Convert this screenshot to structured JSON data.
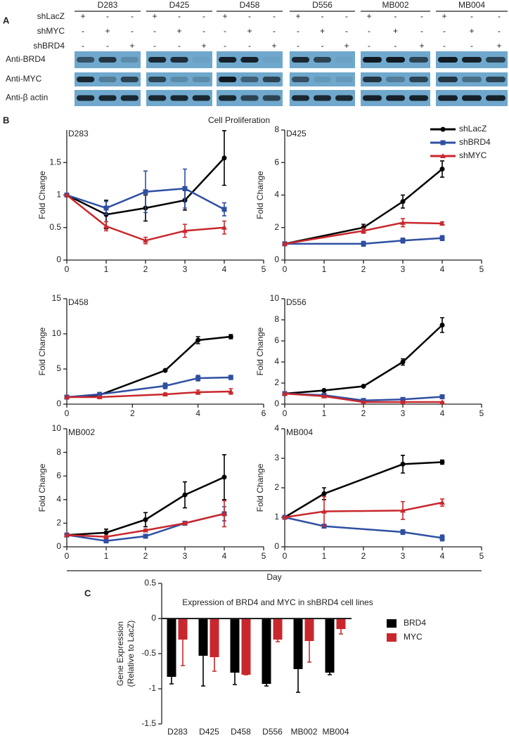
{
  "panel_labels": [
    "A",
    "B",
    "C"
  ],
  "blot": {
    "cell_lines": [
      "D283",
      "D425",
      "D458",
      "D556",
      "MB002",
      "MB004"
    ],
    "conditions": [
      {
        "name": "shLacZ",
        "marks": [
          "+",
          "-",
          "-"
        ]
      },
      {
        "name": "shMYC",
        "marks": [
          "-",
          "+",
          "-"
        ]
      },
      {
        "name": "shBRD4",
        "marks": [
          "-",
          "-",
          "+"
        ]
      }
    ],
    "antibodies": [
      "Anti-BRD4",
      "Anti-MYC",
      "Anti-β actin"
    ]
  },
  "panel_b": {
    "title": "Cell Proliferation",
    "xlabel": "Day",
    "legend": [
      {
        "name": "shLacZ",
        "color": "#000000"
      },
      {
        "name": "shBRD4",
        "color": "#2f4fa2"
      },
      {
        "name": "shMYC",
        "color": "#c8282d"
      }
    ]
  },
  "chart_data": [
    {
      "type": "line",
      "title": "D283",
      "ylabel": "Fold Change",
      "x": [
        0,
        1,
        2,
        3,
        4
      ],
      "xlim": [
        0,
        5
      ],
      "xticks": [
        0,
        1,
        2,
        3,
        4,
        5
      ],
      "ylim": [
        0,
        2
      ],
      "yticks": [
        0,
        0.5,
        1,
        1.5
      ],
      "series": [
        {
          "values": [
            1,
            0.7,
            0.8,
            0.92,
            1.57
          ],
          "errors": [
            0,
            0.22,
            0.2,
            0.15,
            0.42
          ]
        },
        {
          "values": [
            1,
            0.8,
            1.05,
            1.1,
            0.78
          ],
          "errors": [
            0,
            0.1,
            0.32,
            0.3,
            0.1
          ]
        },
        {
          "values": [
            1,
            0.52,
            0.3,
            0.45,
            0.5
          ],
          "errors": [
            0,
            0.07,
            0.05,
            0.1,
            0.1
          ]
        }
      ]
    },
    {
      "type": "line",
      "title": "D425",
      "ylabel": "Fold Change",
      "x": [
        0,
        2,
        3,
        4
      ],
      "xlim": [
        0,
        5
      ],
      "xticks": [
        0,
        1,
        2,
        3,
        4,
        5
      ],
      "ylim": [
        0,
        8
      ],
      "yticks": [
        0,
        2,
        4,
        6,
        8
      ],
      "series": [
        {
          "values": [
            1,
            2,
            3.6,
            5.6
          ],
          "errors": [
            0,
            0.2,
            0.4,
            0.5
          ]
        },
        {
          "values": [
            1,
            1,
            1.2,
            1.35
          ],
          "errors": [
            0,
            0.15,
            0.15,
            0.15
          ]
        },
        {
          "values": [
            1,
            1.8,
            2.3,
            2.25
          ],
          "errors": [
            0,
            0.15,
            0.25,
            0.1
          ]
        }
      ]
    },
    {
      "type": "line",
      "title": "D458",
      "ylabel": "Fold Change",
      "x": [
        0,
        1,
        3,
        4,
        5
      ],
      "xlim": [
        0,
        6
      ],
      "xticks": [
        0,
        2,
        4,
        6
      ],
      "ylim": [
        0,
        15
      ],
      "yticks": [
        0,
        5,
        10,
        15
      ],
      "series": [
        {
          "values": [
            1,
            1.3,
            4.8,
            9.1,
            9.6
          ],
          "errors": [
            0,
            0.1,
            0,
            0.5,
            0.3
          ]
        },
        {
          "values": [
            1,
            1.4,
            2.6,
            3.7,
            3.8
          ],
          "errors": [
            0,
            0.2,
            0.4,
            0.4,
            0.3
          ]
        },
        {
          "values": [
            1,
            1,
            1.4,
            1.7,
            1.8
          ],
          "errors": [
            0,
            0.1,
            0.2,
            0.3,
            0.4
          ]
        }
      ]
    },
    {
      "type": "line",
      "title": "D556",
      "ylabel": "Fold Change",
      "x": [
        0,
        1,
        2,
        3,
        4
      ],
      "xlim": [
        0,
        5
      ],
      "xticks": [
        0,
        1,
        2,
        3,
        4,
        5
      ],
      "ylim": [
        0,
        10
      ],
      "yticks": [
        0,
        2,
        4,
        6,
        8,
        10
      ],
      "series": [
        {
          "values": [
            1,
            1.3,
            1.7,
            4,
            7.5
          ],
          "errors": [
            0,
            0.1,
            0,
            0.3,
            0.7
          ]
        },
        {
          "values": [
            1,
            0.85,
            0.35,
            0.45,
            0.7
          ],
          "errors": [
            0,
            0.05,
            0.03,
            0.05,
            0.05
          ]
        },
        {
          "values": [
            1,
            0.75,
            0.2,
            0.2,
            0.2
          ],
          "errors": [
            0,
            0.05,
            0.03,
            0.03,
            0.03
          ]
        }
      ]
    },
    {
      "type": "line",
      "title": "MB002",
      "ylabel": "Fold Change",
      "x": [
        0,
        1,
        2,
        3,
        4
      ],
      "xlim": [
        0,
        5
      ],
      "xticks": [
        0,
        1,
        2,
        3,
        4,
        5
      ],
      "ylim": [
        0,
        10
      ],
      "yticks": [
        0,
        2,
        4,
        6,
        8,
        10
      ],
      "series": [
        {
          "values": [
            1,
            1.2,
            2.3,
            4.4,
            5.9
          ],
          "errors": [
            0,
            0.3,
            0.6,
            1.1,
            1.9
          ]
        },
        {
          "values": [
            1,
            0.5,
            0.9,
            2,
            2.8
          ],
          "errors": [
            0,
            0.1,
            0.15,
            0.15,
            0.6
          ]
        },
        {
          "values": [
            1,
            0.85,
            1.4,
            2,
            2.8
          ],
          "errors": [
            0,
            0.1,
            0.1,
            0.1,
            1.1
          ]
        }
      ]
    },
    {
      "type": "line",
      "title": "MB004",
      "ylabel": "Fold Change",
      "x": [
        0,
        1,
        3,
        4
      ],
      "xlim": [
        0,
        5
      ],
      "xticks": [
        0,
        1,
        2,
        3,
        4,
        5
      ],
      "ylim": [
        0,
        4
      ],
      "yticks": [
        0,
        1,
        2,
        3,
        4
      ],
      "series": [
        {
          "values": [
            1,
            1.8,
            2.8,
            2.87
          ],
          "errors": [
            0,
            0.2,
            0.3,
            0.07
          ]
        },
        {
          "values": [
            1,
            0.7,
            0.5,
            0.3
          ],
          "errors": [
            0,
            0.05,
            0.08,
            0.1
          ]
        },
        {
          "values": [
            1,
            1.2,
            1.23,
            1.5
          ],
          "errors": [
            0,
            0.5,
            0.3,
            0.12
          ]
        }
      ]
    },
    {
      "type": "bar",
      "title": "Expression of BRD4 and MYC in shBRD4 cell lines",
      "ylabel": [
        "Gene Expression",
        "(Relative to LacZ)"
      ],
      "categories": [
        "D283",
        "D425",
        "D458",
        "D556",
        "MB002",
        "MB004"
      ],
      "ylim": [
        -1.5,
        0.5
      ],
      "yticks": [
        0.5,
        0,
        -0.5,
        -1,
        -1.5
      ],
      "series": [
        {
          "name": "BRD4",
          "color": "#000000",
          "values": [
            -0.83,
            -0.53,
            -0.77,
            -0.93,
            -0.72,
            -0.77
          ],
          "errors": [
            0.1,
            0.43,
            0.17,
            0.03,
            0.33,
            0.03
          ]
        },
        {
          "name": "MYC",
          "color": "#c8282d",
          "values": [
            -0.3,
            -0.55,
            -0.8,
            -0.3,
            -0.32,
            -0.15
          ],
          "errors": [
            0.37,
            0.2,
            0,
            0.03,
            0.3,
            0.07
          ]
        }
      ]
    }
  ]
}
